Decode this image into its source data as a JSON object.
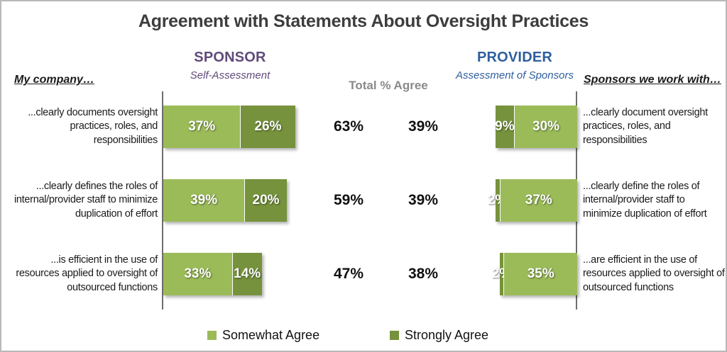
{
  "title": "Agreement with Statements About Oversight Practices",
  "columns": {
    "left_axis_label": "My company…",
    "sponsor": {
      "title": "SPONSOR",
      "subtitle": "Self-Assessment"
    },
    "total_label": "Total % Agree",
    "provider": {
      "title": "PROVIDER",
      "subtitle": "Assessment of Sponsors"
    },
    "right_axis_label": "Sponsors we work with…"
  },
  "legend": [
    {
      "label": "Somewhat Agree",
      "color": "#9BBB59"
    },
    {
      "label": "Strongly Agree",
      "color": "#76923C"
    }
  ],
  "colors": {
    "somewhat_agree": "#9BBB59",
    "strongly_agree": "#76923C",
    "sponsor_heading": "#604A7B",
    "provider_heading": "#2E5F9E",
    "total_heading": "#8A8A8A",
    "title_text": "#3D3D3D"
  },
  "chart_data": {
    "type": "bar",
    "orientation": "horizontal",
    "unit": "percent",
    "title": "Agreement with Statements About Oversight Practices",
    "legend": [
      "Somewhat Agree",
      "Strongly Agree"
    ],
    "groups": [
      "SPONSOR Self-Assessment",
      "PROVIDER Assessment of Sponsors"
    ],
    "rows": [
      {
        "sponsor_statement": "...clearly documents oversight practices, roles, and responsibilities",
        "provider_statement": "...clearly document oversight practices, roles, and responsibilities",
        "sponsor": {
          "somewhat_agree": 37,
          "strongly_agree": 26,
          "total": 63
        },
        "provider": {
          "somewhat_agree": 30,
          "strongly_agree": 9,
          "total": 39
        }
      },
      {
        "sponsor_statement": "...clearly defines the roles of internal/provider staff to minimize duplication of effort",
        "provider_statement": "...clearly define the roles of internal/provider staff to minimize duplication of effort",
        "sponsor": {
          "somewhat_agree": 39,
          "strongly_agree": 20,
          "total": 59
        },
        "provider": {
          "somewhat_agree": 37,
          "strongly_agree": 2,
          "total": 39
        }
      },
      {
        "sponsor_statement": "...is efficient in the use of resources applied to oversight of outsourced functions",
        "provider_statement": "...are efficient in the use of resources applied to oversight of outsourced functions",
        "sponsor": {
          "somewhat_agree": 33,
          "strongly_agree": 14,
          "total": 47
        },
        "provider": {
          "somewhat_agree": 35,
          "strongly_agree": 2,
          "total": 38
        }
      }
    ]
  }
}
